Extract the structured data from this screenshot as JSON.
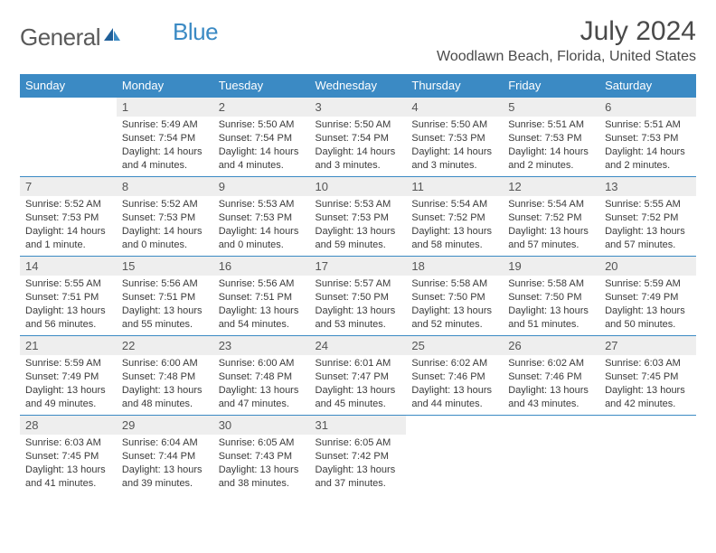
{
  "brand": {
    "name_a": "General",
    "name_b": "Blue"
  },
  "title": "July 2024",
  "location": "Woodlawn Beach, Florida, United States",
  "colors": {
    "header_bg": "#3b8ac4",
    "header_text": "#ffffff",
    "daynum_bg": "#eeeeee",
    "row_border": "#3b8ac4",
    "body_text": "#3a3a3a"
  },
  "daynames": [
    "Sunday",
    "Monday",
    "Tuesday",
    "Wednesday",
    "Thursday",
    "Friday",
    "Saturday"
  ],
  "weeks": [
    [
      null,
      {
        "n": "1",
        "sr": "Sunrise: 5:49 AM",
        "ss": "Sunset: 7:54 PM",
        "d1": "Daylight: 14 hours",
        "d2": "and 4 minutes."
      },
      {
        "n": "2",
        "sr": "Sunrise: 5:50 AM",
        "ss": "Sunset: 7:54 PM",
        "d1": "Daylight: 14 hours",
        "d2": "and 4 minutes."
      },
      {
        "n": "3",
        "sr": "Sunrise: 5:50 AM",
        "ss": "Sunset: 7:54 PM",
        "d1": "Daylight: 14 hours",
        "d2": "and 3 minutes."
      },
      {
        "n": "4",
        "sr": "Sunrise: 5:50 AM",
        "ss": "Sunset: 7:53 PM",
        "d1": "Daylight: 14 hours",
        "d2": "and 3 minutes."
      },
      {
        "n": "5",
        "sr": "Sunrise: 5:51 AM",
        "ss": "Sunset: 7:53 PM",
        "d1": "Daylight: 14 hours",
        "d2": "and 2 minutes."
      },
      {
        "n": "6",
        "sr": "Sunrise: 5:51 AM",
        "ss": "Sunset: 7:53 PM",
        "d1": "Daylight: 14 hours",
        "d2": "and 2 minutes."
      }
    ],
    [
      {
        "n": "7",
        "sr": "Sunrise: 5:52 AM",
        "ss": "Sunset: 7:53 PM",
        "d1": "Daylight: 14 hours",
        "d2": "and 1 minute."
      },
      {
        "n": "8",
        "sr": "Sunrise: 5:52 AM",
        "ss": "Sunset: 7:53 PM",
        "d1": "Daylight: 14 hours",
        "d2": "and 0 minutes."
      },
      {
        "n": "9",
        "sr": "Sunrise: 5:53 AM",
        "ss": "Sunset: 7:53 PM",
        "d1": "Daylight: 14 hours",
        "d2": "and 0 minutes."
      },
      {
        "n": "10",
        "sr": "Sunrise: 5:53 AM",
        "ss": "Sunset: 7:53 PM",
        "d1": "Daylight: 13 hours",
        "d2": "and 59 minutes."
      },
      {
        "n": "11",
        "sr": "Sunrise: 5:54 AM",
        "ss": "Sunset: 7:52 PM",
        "d1": "Daylight: 13 hours",
        "d2": "and 58 minutes."
      },
      {
        "n": "12",
        "sr": "Sunrise: 5:54 AM",
        "ss": "Sunset: 7:52 PM",
        "d1": "Daylight: 13 hours",
        "d2": "and 57 minutes."
      },
      {
        "n": "13",
        "sr": "Sunrise: 5:55 AM",
        "ss": "Sunset: 7:52 PM",
        "d1": "Daylight: 13 hours",
        "d2": "and 57 minutes."
      }
    ],
    [
      {
        "n": "14",
        "sr": "Sunrise: 5:55 AM",
        "ss": "Sunset: 7:51 PM",
        "d1": "Daylight: 13 hours",
        "d2": "and 56 minutes."
      },
      {
        "n": "15",
        "sr": "Sunrise: 5:56 AM",
        "ss": "Sunset: 7:51 PM",
        "d1": "Daylight: 13 hours",
        "d2": "and 55 minutes."
      },
      {
        "n": "16",
        "sr": "Sunrise: 5:56 AM",
        "ss": "Sunset: 7:51 PM",
        "d1": "Daylight: 13 hours",
        "d2": "and 54 minutes."
      },
      {
        "n": "17",
        "sr": "Sunrise: 5:57 AM",
        "ss": "Sunset: 7:50 PM",
        "d1": "Daylight: 13 hours",
        "d2": "and 53 minutes."
      },
      {
        "n": "18",
        "sr": "Sunrise: 5:58 AM",
        "ss": "Sunset: 7:50 PM",
        "d1": "Daylight: 13 hours",
        "d2": "and 52 minutes."
      },
      {
        "n": "19",
        "sr": "Sunrise: 5:58 AM",
        "ss": "Sunset: 7:50 PM",
        "d1": "Daylight: 13 hours",
        "d2": "and 51 minutes."
      },
      {
        "n": "20",
        "sr": "Sunrise: 5:59 AM",
        "ss": "Sunset: 7:49 PM",
        "d1": "Daylight: 13 hours",
        "d2": "and 50 minutes."
      }
    ],
    [
      {
        "n": "21",
        "sr": "Sunrise: 5:59 AM",
        "ss": "Sunset: 7:49 PM",
        "d1": "Daylight: 13 hours",
        "d2": "and 49 minutes."
      },
      {
        "n": "22",
        "sr": "Sunrise: 6:00 AM",
        "ss": "Sunset: 7:48 PM",
        "d1": "Daylight: 13 hours",
        "d2": "and 48 minutes."
      },
      {
        "n": "23",
        "sr": "Sunrise: 6:00 AM",
        "ss": "Sunset: 7:48 PM",
        "d1": "Daylight: 13 hours",
        "d2": "and 47 minutes."
      },
      {
        "n": "24",
        "sr": "Sunrise: 6:01 AM",
        "ss": "Sunset: 7:47 PM",
        "d1": "Daylight: 13 hours",
        "d2": "and 45 minutes."
      },
      {
        "n": "25",
        "sr": "Sunrise: 6:02 AM",
        "ss": "Sunset: 7:46 PM",
        "d1": "Daylight: 13 hours",
        "d2": "and 44 minutes."
      },
      {
        "n": "26",
        "sr": "Sunrise: 6:02 AM",
        "ss": "Sunset: 7:46 PM",
        "d1": "Daylight: 13 hours",
        "d2": "and 43 minutes."
      },
      {
        "n": "27",
        "sr": "Sunrise: 6:03 AM",
        "ss": "Sunset: 7:45 PM",
        "d1": "Daylight: 13 hours",
        "d2": "and 42 minutes."
      }
    ],
    [
      {
        "n": "28",
        "sr": "Sunrise: 6:03 AM",
        "ss": "Sunset: 7:45 PM",
        "d1": "Daylight: 13 hours",
        "d2": "and 41 minutes."
      },
      {
        "n": "29",
        "sr": "Sunrise: 6:04 AM",
        "ss": "Sunset: 7:44 PM",
        "d1": "Daylight: 13 hours",
        "d2": "and 39 minutes."
      },
      {
        "n": "30",
        "sr": "Sunrise: 6:05 AM",
        "ss": "Sunset: 7:43 PM",
        "d1": "Daylight: 13 hours",
        "d2": "and 38 minutes."
      },
      {
        "n": "31",
        "sr": "Sunrise: 6:05 AM",
        "ss": "Sunset: 7:42 PM",
        "d1": "Daylight: 13 hours",
        "d2": "and 37 minutes."
      },
      null,
      null,
      null
    ]
  ]
}
